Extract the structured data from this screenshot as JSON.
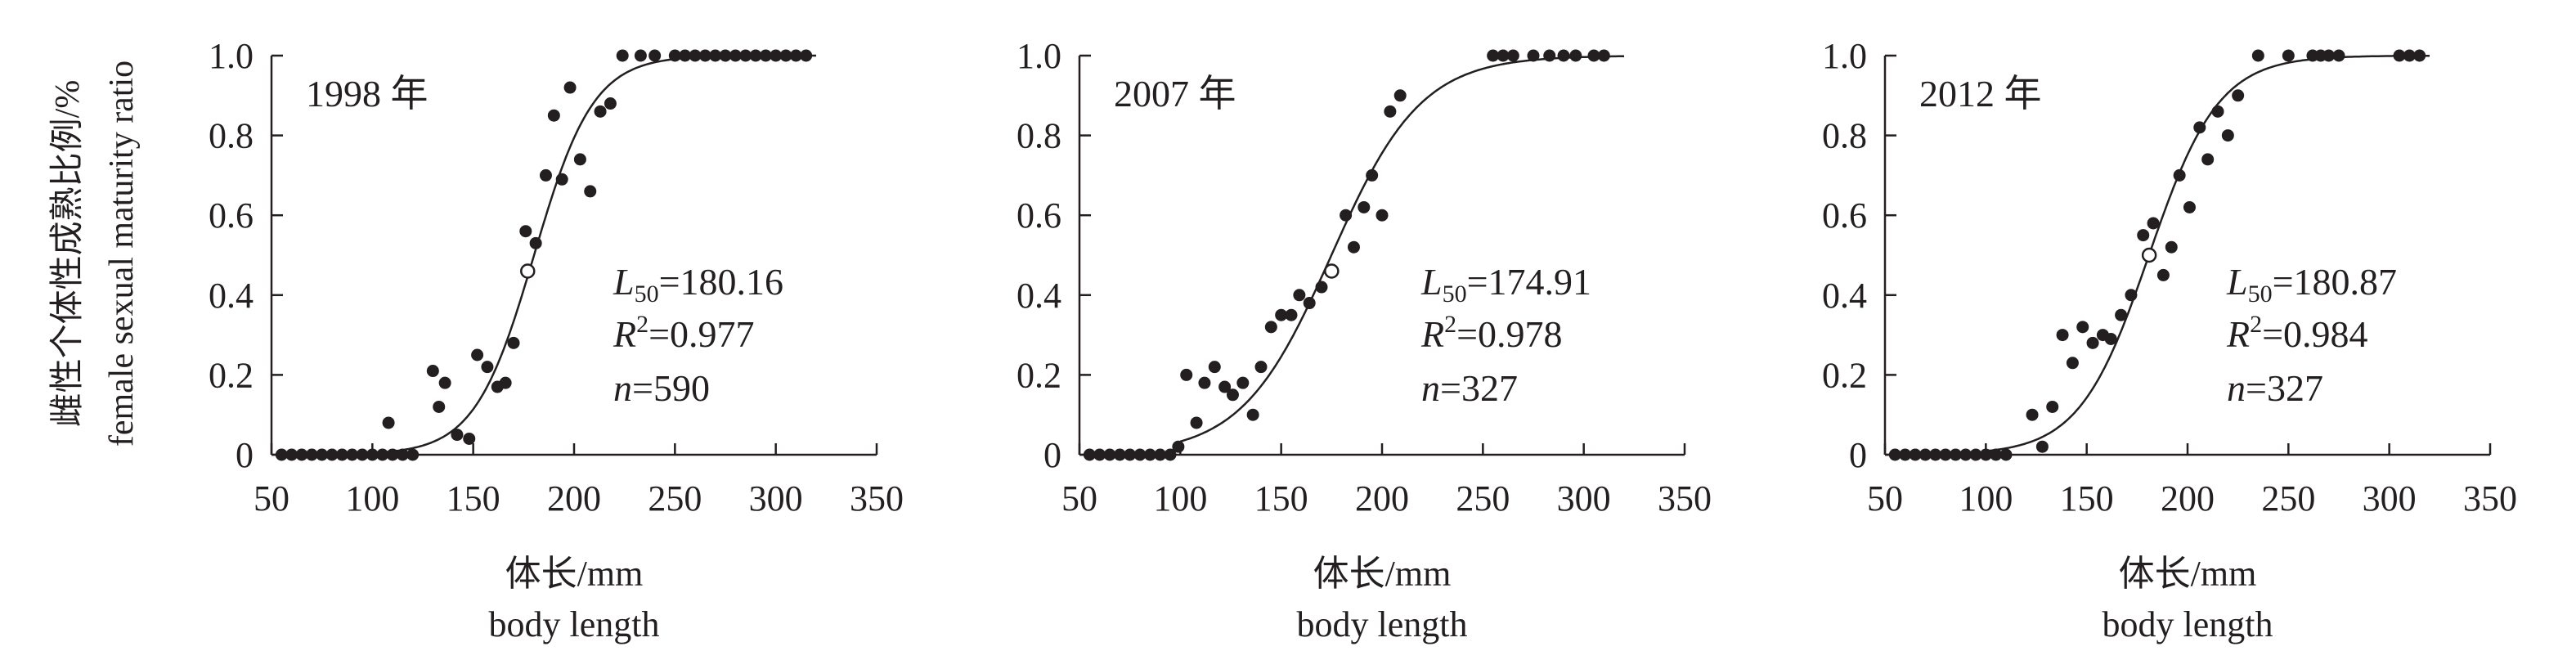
{
  "y_axis_title": {
    "cn": "雌性个体性成熟比例/%",
    "en": "female sexual maturity ratio"
  },
  "chart_data": [
    {
      "type": "scatter",
      "panel_label": "1998 年",
      "xlabel_cn": "体长/mm",
      "xlabel_en": "body length",
      "xlim": [
        50,
        350
      ],
      "ylim": [
        0,
        1.0
      ],
      "x_ticks": [
        "50",
        "100",
        "150",
        "200",
        "250",
        "300",
        "350"
      ],
      "y_ticks": [
        "0",
        "0.2",
        "0.4",
        "0.6",
        "0.8",
        "1.0"
      ],
      "grid": false,
      "stats": {
        "L50_label": "L",
        "L50_sub": "50",
        "L50_value": "=180.16",
        "R2_label": "R",
        "R2_sup": "2",
        "R2_value": "=0.977",
        "n_label": "n",
        "n_value": "=590"
      },
      "logistic": {
        "L50": 180.16,
        "k": 0.068
      },
      "L50_marker": {
        "x": 177,
        "y": 0.46
      },
      "points": [
        [
          55,
          0
        ],
        [
          60,
          0
        ],
        [
          65,
          0
        ],
        [
          70,
          0
        ],
        [
          75,
          0
        ],
        [
          80,
          0
        ],
        [
          85,
          0
        ],
        [
          90,
          0
        ],
        [
          95,
          0
        ],
        [
          100,
          0
        ],
        [
          105,
          0
        ],
        [
          110,
          0
        ],
        [
          115,
          0
        ],
        [
          120,
          0
        ],
        [
          108,
          0.08
        ],
        [
          130,
          0.21
        ],
        [
          133,
          0.12
        ],
        [
          136,
          0.18
        ],
        [
          142,
          0.05
        ],
        [
          148,
          0.04
        ],
        [
          152,
          0.25
        ],
        [
          157,
          0.22
        ],
        [
          162,
          0.17
        ],
        [
          166,
          0.18
        ],
        [
          170,
          0.28
        ],
        [
          176,
          0.56
        ],
        [
          181,
          0.53
        ],
        [
          186,
          0.7
        ],
        [
          190,
          0.85
        ],
        [
          194,
          0.69
        ],
        [
          198,
          0.92
        ],
        [
          203,
          0.74
        ],
        [
          208,
          0.66
        ],
        [
          213,
          0.86
        ],
        [
          218,
          0.88
        ],
        [
          224,
          1.0
        ],
        [
          233,
          1.0
        ],
        [
          240,
          1.0
        ],
        [
          250,
          1.0
        ],
        [
          255,
          1.0
        ],
        [
          260,
          1.0
        ],
        [
          265,
          1.0
        ],
        [
          270,
          1.0
        ],
        [
          275,
          1.0
        ],
        [
          280,
          1.0
        ],
        [
          285,
          1.0
        ],
        [
          290,
          1.0
        ],
        [
          295,
          1.0
        ],
        [
          300,
          1.0
        ],
        [
          305,
          1.0
        ],
        [
          310,
          1.0
        ],
        [
          315,
          1.0
        ]
      ]
    },
    {
      "type": "scatter",
      "panel_label": "2007 年",
      "xlabel_cn": "体长/mm",
      "xlabel_en": "body length",
      "xlim": [
        50,
        350
      ],
      "ylim": [
        0,
        1.0
      ],
      "x_ticks": [
        "50",
        "100",
        "150",
        "200",
        "250",
        "300",
        "350"
      ],
      "y_ticks": [
        "0",
        "0.2",
        "0.4",
        "0.6",
        "0.8",
        "1.0"
      ],
      "grid": false,
      "stats": {
        "L50_label": "L",
        "L50_sub": "50",
        "L50_value": "=174.91",
        "R2_label": "R",
        "R2_sup": "2",
        "R2_value": "=0.978",
        "n_label": "n",
        "n_value": "=327"
      },
      "logistic": {
        "L50": 174.91,
        "k": 0.045
      },
      "L50_marker": {
        "x": 175,
        "y": 0.46
      },
      "points": [
        [
          55,
          0
        ],
        [
          60,
          0
        ],
        [
          65,
          0
        ],
        [
          70,
          0
        ],
        [
          75,
          0
        ],
        [
          80,
          0
        ],
        [
          85,
          0
        ],
        [
          90,
          0
        ],
        [
          95,
          0
        ],
        [
          99,
          0.02
        ],
        [
          103,
          0.2
        ],
        [
          108,
          0.08
        ],
        [
          112,
          0.18
        ],
        [
          117,
          0.22
        ],
        [
          122,
          0.17
        ],
        [
          126,
          0.15
        ],
        [
          131,
          0.18
        ],
        [
          136,
          0.1
        ],
        [
          140,
          0.22
        ],
        [
          145,
          0.32
        ],
        [
          150,
          0.35
        ],
        [
          155,
          0.35
        ],
        [
          159,
          0.4
        ],
        [
          164,
          0.38
        ],
        [
          170,
          0.42
        ],
        [
          182,
          0.6
        ],
        [
          186,
          0.52
        ],
        [
          191,
          0.62
        ],
        [
          195,
          0.7
        ],
        [
          200,
          0.6
        ],
        [
          204,
          0.86
        ],
        [
          209,
          0.9
        ],
        [
          255,
          1.0
        ],
        [
          260,
          1.0
        ],
        [
          265,
          1.0
        ],
        [
          275,
          1.0
        ],
        [
          283,
          1.0
        ],
        [
          290,
          1.0
        ],
        [
          296,
          1.0
        ],
        [
          305,
          1.0
        ],
        [
          310,
          1.0
        ]
      ]
    },
    {
      "type": "scatter",
      "panel_label": "2012 年",
      "xlabel_cn": "体长/mm",
      "xlabel_en": "body length",
      "xlim": [
        50,
        350
      ],
      "ylim": [
        0,
        1.0
      ],
      "x_ticks": [
        "50",
        "100",
        "150",
        "200",
        "250",
        "300",
        "350"
      ],
      "y_ticks": [
        "0",
        "0.2",
        "0.4",
        "0.6",
        "0.8",
        "1.0"
      ],
      "grid": false,
      "stats": {
        "L50_label": "L",
        "L50_sub": "50",
        "L50_value": "=180.87",
        "R2_label": "R",
        "R2_sup": "2",
        "R2_value": "=0.984",
        "n_label": "n",
        "n_value": "=327"
      },
      "logistic": {
        "L50": 180.87,
        "k": 0.058
      },
      "L50_marker": {
        "x": 181,
        "y": 0.5
      },
      "points": [
        [
          55,
          0
        ],
        [
          60,
          0
        ],
        [
          65,
          0
        ],
        [
          70,
          0
        ],
        [
          75,
          0
        ],
        [
          80,
          0
        ],
        [
          85,
          0
        ],
        [
          90,
          0
        ],
        [
          95,
          0
        ],
        [
          100,
          0
        ],
        [
          105,
          0
        ],
        [
          110,
          0
        ],
        [
          123,
          0.1
        ],
        [
          128,
          0.02
        ],
        [
          133,
          0.12
        ],
        [
          138,
          0.3
        ],
        [
          143,
          0.23
        ],
        [
          148,
          0.32
        ],
        [
          153,
          0.28
        ],
        [
          158,
          0.3
        ],
        [
          162,
          0.29
        ],
        [
          167,
          0.35
        ],
        [
          172,
          0.4
        ],
        [
          178,
          0.55
        ],
        [
          183,
          0.58
        ],
        [
          188,
          0.45
        ],
        [
          192,
          0.52
        ],
        [
          196,
          0.7
        ],
        [
          201,
          0.62
        ],
        [
          206,
          0.82
        ],
        [
          210,
          0.74
        ],
        [
          215,
          0.86
        ],
        [
          220,
          0.8
        ],
        [
          225,
          0.9
        ],
        [
          235,
          1.0
        ],
        [
          250,
          1.0
        ],
        [
          262,
          1.0
        ],
        [
          266,
          1.0
        ],
        [
          270,
          1.0
        ],
        [
          275,
          1.0
        ],
        [
          305,
          1.0
        ],
        [
          310,
          1.0
        ],
        [
          315,
          1.0
        ]
      ]
    }
  ]
}
